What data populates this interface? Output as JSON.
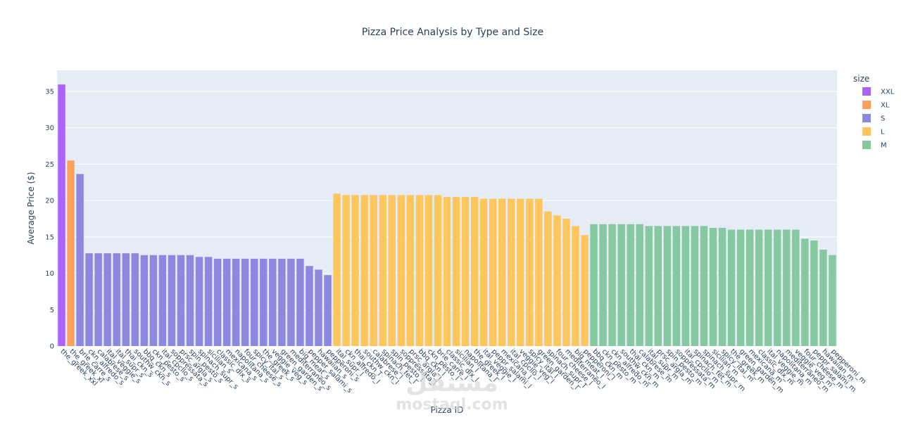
{
  "chart_data": {
    "type": "bar",
    "title": "Pizza Price Analysis by Type and Size",
    "xlabel": "Pizza ID",
    "ylabel": "Average Price ($)",
    "ylim": [
      0,
      37.9
    ],
    "yticks": [
      0,
      5,
      10,
      15,
      20,
      25,
      30,
      35
    ],
    "grid": true,
    "legend": {
      "title": "size",
      "position": "top-right",
      "items": [
        "XXL",
        "XL",
        "S",
        "L",
        "M"
      ]
    },
    "colors": {
      "XXL": "#ab63fa",
      "XL": "#ffa15a",
      "S": "#8c88e0",
      "L": "#ffc65c",
      "M": "#86c89f"
    },
    "bars": [
      {
        "x": "the_greek_xxl",
        "y": 35.95,
        "size": "XXL"
      },
      {
        "x": "the_greek_xl",
        "y": 25.5,
        "size": "XL"
      },
      {
        "x": "brie_carre_s",
        "y": 23.65,
        "size": "S"
      },
      {
        "x": "ckn_alfredo_s",
        "y": 12.75,
        "size": "S"
      },
      {
        "x": "calabrese_s",
        "y": 12.75,
        "size": "S"
      },
      {
        "x": "ital_veggie_s",
        "y": 12.75,
        "size": "S"
      },
      {
        "x": "ital_supr_s",
        "y": 12.75,
        "size": "S"
      },
      {
        "x": "thai_ckn_s",
        "y": 12.75,
        "size": "S"
      },
      {
        "x": "southw_ckn_s",
        "y": 12.75,
        "size": "S"
      },
      {
        "x": "bbq_ckn_s",
        "y": 12.5,
        "size": "S"
      },
      {
        "x": "ckn_pesto_s",
        "y": 12.5,
        "size": "S"
      },
      {
        "x": "ital_cpcllo_s",
        "y": 12.5,
        "size": "S"
      },
      {
        "x": "soppressata_s",
        "y": 12.5,
        "size": "S"
      },
      {
        "x": "prsc_argla_s",
        "y": 12.5,
        "size": "S"
      },
      {
        "x": "spin_pesto_s",
        "y": 12.5,
        "size": "S"
      },
      {
        "x": "spinach_supr_s",
        "y": 12.25,
        "size": "S"
      },
      {
        "x": "sicilian_s",
        "y": 12.25,
        "size": "S"
      },
      {
        "x": "classic_dlx_s",
        "y": 12.0,
        "size": "S"
      },
      {
        "x": "mexicana_s",
        "y": 12.0,
        "size": "S"
      },
      {
        "x": "napolitana_s",
        "y": 12.0,
        "size": "S"
      },
      {
        "x": "four_cheese_s",
        "y": 12.0,
        "size": "S"
      },
      {
        "x": "spicy_ital_s",
        "y": 12.0,
        "size": "S"
      },
      {
        "x": "the_greek_s",
        "y": 12.0,
        "size": "S"
      },
      {
        "x": "veggie_veg_s",
        "y": 12.0,
        "size": "S"
      },
      {
        "x": "green_garden_s",
        "y": 12.0,
        "size": "S"
      },
      {
        "x": "mediterraneo_s",
        "y": 12.0,
        "size": "S"
      },
      {
        "x": "big_meat_s",
        "y": 12.0,
        "size": "S"
      },
      {
        "x": "pepper_salami_s",
        "y": 11.0,
        "size": "S"
      },
      {
        "x": "hawaiian_s",
        "y": 10.5,
        "size": "S"
      },
      {
        "x": "pepperoni_s",
        "y": 9.75,
        "size": "S"
      },
      {
        "x": "ital_supr_l",
        "y": 20.95,
        "size": "L"
      },
      {
        "x": "ckn_alfredo_l",
        "y": 20.75,
        "size": "L"
      },
      {
        "x": "thai_ckn_l",
        "y": 20.75,
        "size": "L"
      },
      {
        "x": "southw_ckn_l",
        "y": 20.75,
        "size": "L"
      },
      {
        "x": "calabrese_l",
        "y": 20.75,
        "size": "L"
      },
      {
        "x": "spinach_fet_l",
        "y": 20.75,
        "size": "L"
      },
      {
        "x": "spin_pesto_l",
        "y": 20.75,
        "size": "L"
      },
      {
        "x": "soppressata_l",
        "y": 20.75,
        "size": "L"
      },
      {
        "x": "prsc_argla_l",
        "y": 20.75,
        "size": "L"
      },
      {
        "x": "bbq_ckn_l",
        "y": 20.75,
        "size": "L"
      },
      {
        "x": "ckn_pesto_l",
        "y": 20.75,
        "size": "L"
      },
      {
        "x": "brie_carre_l",
        "y": 20.75,
        "size": "L"
      },
      {
        "x": "classic_dlx_l",
        "y": 20.5,
        "size": "L"
      },
      {
        "x": "sicilian_l",
        "y": 20.5,
        "size": "L"
      },
      {
        "x": "napolitana_l",
        "y": 20.5,
        "size": "L"
      },
      {
        "x": "the_greek_l",
        "y": 20.5,
        "size": "L"
      },
      {
        "x": "ital_veggie_l",
        "y": 20.25,
        "size": "L"
      },
      {
        "x": "peppr_salami_l",
        "y": 20.25,
        "size": "L"
      },
      {
        "x": "mexicana_l",
        "y": 20.25,
        "size": "L"
      },
      {
        "x": "ital_cpcllo_l",
        "y": 20.25,
        "size": "L"
      },
      {
        "x": "veggie_veg_l",
        "y": 20.25,
        "size": "L"
      },
      {
        "x": "spicy_ital_l",
        "y": 20.25,
        "size": "L"
      },
      {
        "x": "green_garden_l",
        "y": 20.25,
        "size": "L"
      },
      {
        "x": "spinach_supr_l",
        "y": 18.5,
        "size": "L"
      },
      {
        "x": "four_cheese_l",
        "y": 17.95,
        "size": "L"
      },
      {
        "x": "mediterraneo_l",
        "y": 17.5,
        "size": "L"
      },
      {
        "x": "big_meat_l",
        "y": 16.5,
        "size": "L"
      },
      {
        "x": "pepperoni_l",
        "y": 15.25,
        "size": "L"
      },
      {
        "x": "bbq_ckn_m",
        "y": 16.75,
        "size": "M"
      },
      {
        "x": "ckn_pesto_m",
        "y": 16.75,
        "size": "M"
      },
      {
        "x": "ckn_alfredo_m",
        "y": 16.75,
        "size": "M"
      },
      {
        "x": "southw_ckn_m",
        "y": 16.75,
        "size": "M"
      },
      {
        "x": "thai_ckn_m",
        "y": 16.75,
        "size": "M"
      },
      {
        "x": "calabrese_m",
        "y": 16.75,
        "size": "M"
      },
      {
        "x": "ital_supr_m",
        "y": 16.5,
        "size": "M"
      },
      {
        "x": "prsc_argla_m",
        "y": 16.5,
        "size": "M"
      },
      {
        "x": "spin_pesto_m",
        "y": 16.5,
        "size": "M"
      },
      {
        "x": "soppressata_m",
        "y": 16.5,
        "size": "M"
      },
      {
        "x": "ital_cpcllo_m",
        "y": 16.5,
        "size": "M"
      },
      {
        "x": "spinach_fet_m",
        "y": 16.5,
        "size": "M"
      },
      {
        "x": "spinach_supr_m",
        "y": 16.5,
        "size": "M"
      },
      {
        "x": "sicilian_m",
        "y": 16.25,
        "size": "M"
      },
      {
        "x": "spicy_ital_m",
        "y": 16.25,
        "size": "M"
      },
      {
        "x": "the_greek_m",
        "y": 16.0,
        "size": "M"
      },
      {
        "x": "green_garden_m",
        "y": 16.0,
        "size": "M"
      },
      {
        "x": "mexicana_m",
        "y": 16.0,
        "size": "M"
      },
      {
        "x": "classic_dlx_m",
        "y": 16.0,
        "size": "M"
      },
      {
        "x": "ital_veggie_m",
        "y": 16.0,
        "size": "M"
      },
      {
        "x": "napolitana_m",
        "y": 16.0,
        "size": "M"
      },
      {
        "x": "mediterraneo_m",
        "y": 16.0,
        "size": "M"
      },
      {
        "x": "veggie_veg_m",
        "y": 16.0,
        "size": "M"
      },
      {
        "x": "four_cheese_m",
        "y": 14.75,
        "size": "M"
      },
      {
        "x": "peppr_salami_m",
        "y": 14.5,
        "size": "M"
      },
      {
        "x": "hawaiian_m",
        "y": 13.25,
        "size": "M"
      },
      {
        "x": "pepperoni_m",
        "y": 12.5,
        "size": "M"
      }
    ]
  },
  "watermark": {
    "arabic": "مستقل",
    "latin": "mostaql.com"
  }
}
